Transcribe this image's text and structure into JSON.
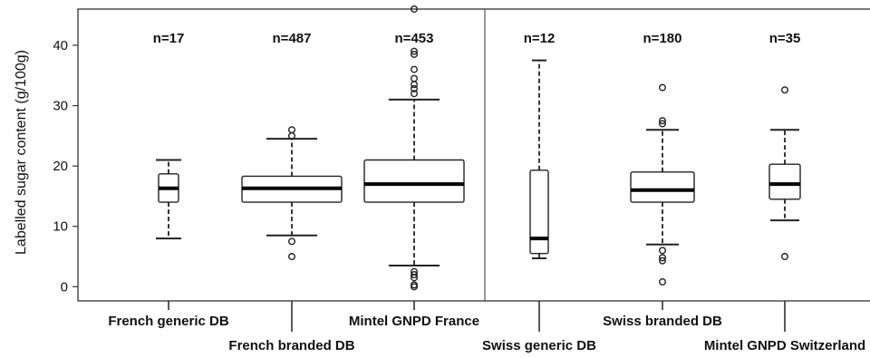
{
  "chart_data": {
    "type": "boxplot",
    "ylabel": "Labelled sugar content (g/100g)",
    "ylim": [
      -1,
      46
    ],
    "yticks": [
      0,
      10,
      20,
      30,
      40
    ],
    "grid": false,
    "divider_after_group": 3,
    "groups": [
      {
        "name": "French generic DB",
        "n_label": "n=17",
        "q1": 14,
        "median": 16.3,
        "q3": 18.7,
        "whisker_low": 8,
        "whisker_high": 21,
        "outliers": []
      },
      {
        "name": "French branded DB",
        "n_label": "n=487",
        "q1": 14,
        "median": 16.3,
        "q3": 18.3,
        "whisker_low": 8.5,
        "whisker_high": 24.5,
        "outliers": [
          26,
          25,
          7.5,
          5
        ]
      },
      {
        "name": "Mintel GNPD France",
        "n_label": "n=453",
        "q1": 14,
        "median": 17,
        "q3": 21,
        "whisker_low": 3.5,
        "whisker_high": 31,
        "outliers": [
          46,
          39,
          38.5,
          36,
          34.5,
          33.5,
          32.8,
          32,
          2.5,
          2,
          1.5,
          0.3,
          0
        ]
      },
      {
        "name": "Swiss generic DB",
        "n_label": "n=12",
        "q1": 5.5,
        "median": 8,
        "q3": 19.3,
        "whisker_low": 4.7,
        "whisker_high": 37.5,
        "outliers": []
      },
      {
        "name": "Swiss branded DB",
        "n_label": "n=180",
        "q1": 14,
        "median": 16,
        "q3": 19,
        "whisker_low": 7,
        "whisker_high": 26,
        "outliers": [
          33,
          27.5,
          27,
          6,
          4.8,
          4.3,
          0.8
        ]
      },
      {
        "name": "Mintel GNPD Switzerland",
        "n_label": "n=35",
        "q1": 14.5,
        "median": 17,
        "q3": 20.3,
        "whisker_low": 11,
        "whisker_high": 26,
        "outliers": [
          32.6,
          5
        ]
      }
    ]
  }
}
